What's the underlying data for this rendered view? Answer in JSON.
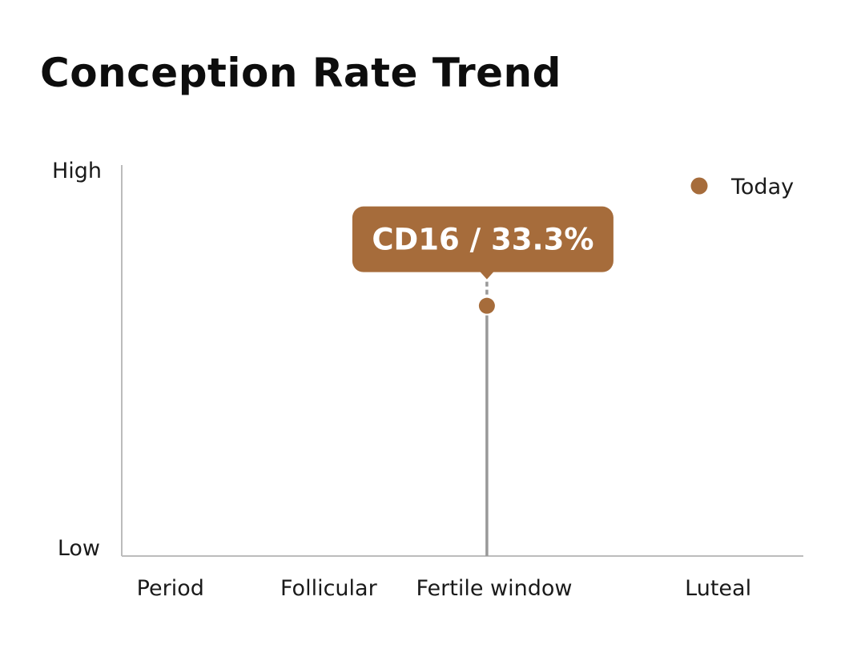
{
  "chart_data": {
    "type": "scatter",
    "title": "Conception Rate Trend",
    "xlabel": "",
    "ylabel": "",
    "y_tick_labels": [
      "Low",
      "High"
    ],
    "ylim": [
      0,
      100
    ],
    "xlim": [
      1,
      29
    ],
    "categories": [
      {
        "label": "Period",
        "x": 3
      },
      {
        "label": "Follicular",
        "x": 9.5
      },
      {
        "label": "Fertile window",
        "x": 16.3
      },
      {
        "label": "Luteal",
        "x": 25.5
      }
    ],
    "legend": {
      "label": "Today",
      "placement": "top-right"
    },
    "points": [
      {
        "name": "Today",
        "x": 16,
        "y": 64,
        "label": "CD16 / 33.3%"
      }
    ],
    "grid": false,
    "colors": {
      "point": "#a66c3b",
      "tooltip": "#a66c3b",
      "axis": "#bcbcbc",
      "stem": "#999999"
    }
  }
}
